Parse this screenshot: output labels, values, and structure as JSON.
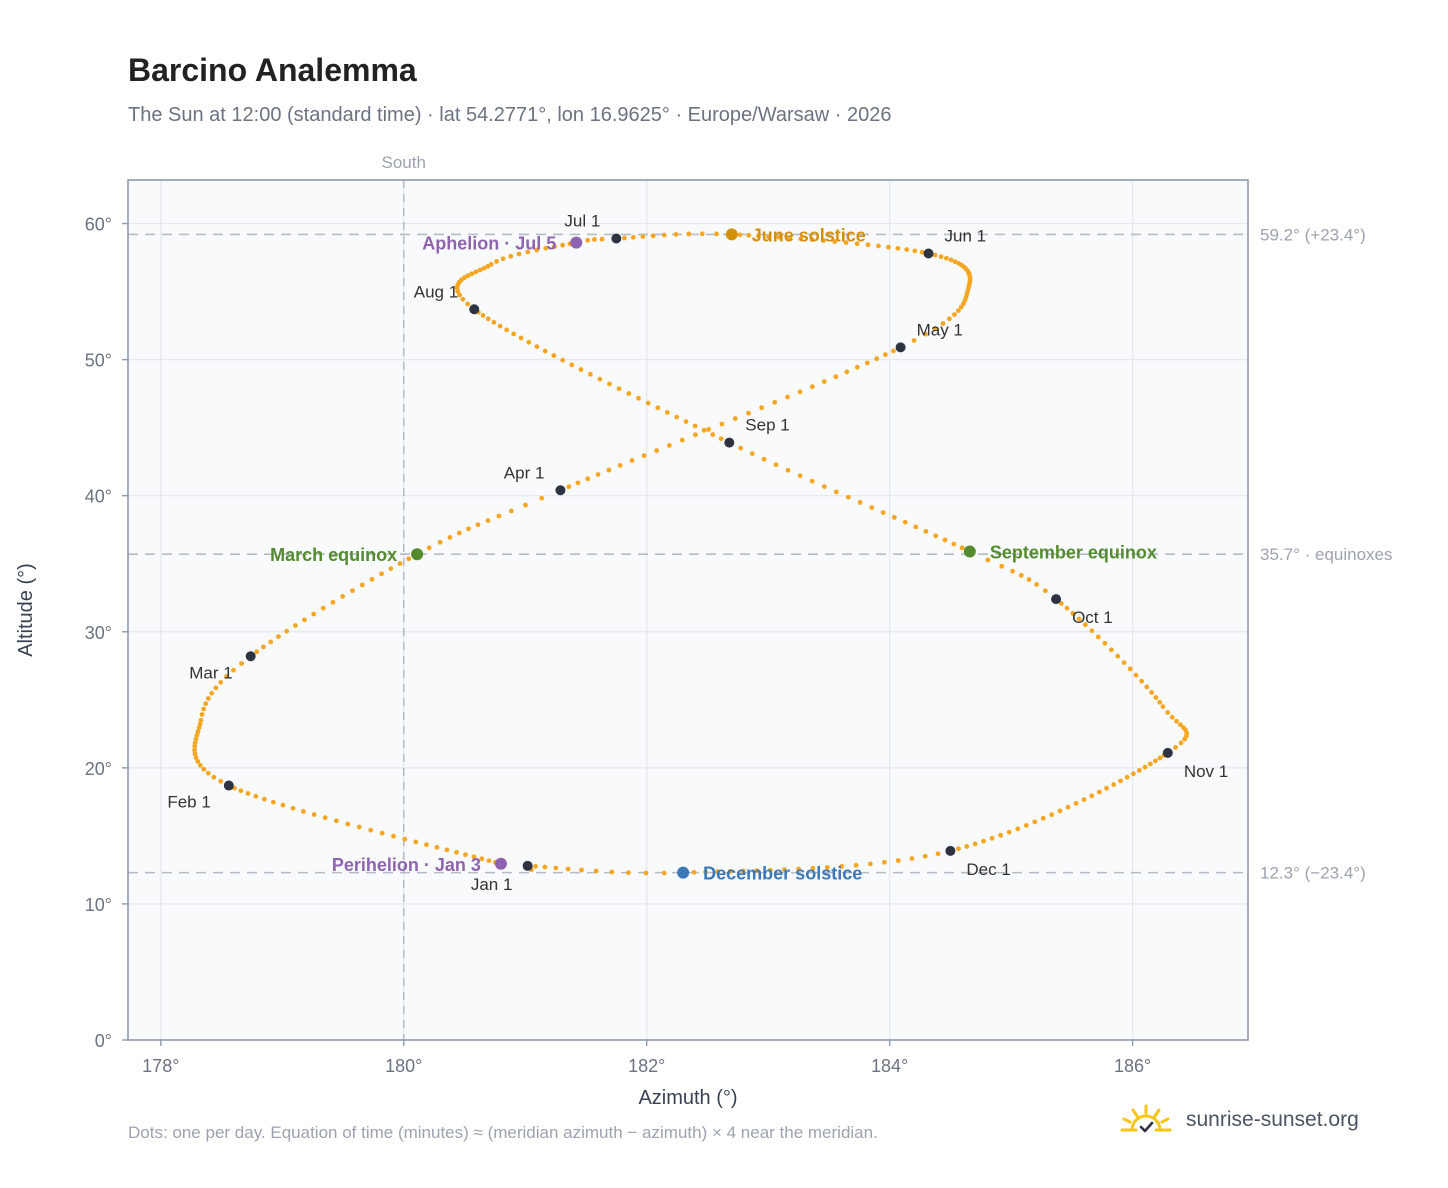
{
  "header": {
    "title": "Barcino Analemma",
    "subtitle": "The Sun at 12:00 (standard time) · lat 54.2771°, lon 16.9625° · Europe/Warsaw · 2026"
  },
  "footer": {
    "note": "Dots: one per day. Equation of time (minutes) ≈ (meridian azimuth − azimuth) × 4 near the meridian.",
    "brand": "sunrise-sunset.org",
    "brand_icon": "sun-logo-icon"
  },
  "colors": {
    "curve": "#f5a623",
    "month_marker": "#2d3340",
    "equinox": "#558b2f",
    "june_solstice": "#d4900a",
    "december_solstice": "#3a78b8",
    "apsis": "#8e63b0",
    "plot_bg": "#f8fafc",
    "grid": "#e3e8ee",
    "frame": "#8f9aab",
    "ref_line": "#b4bcc6"
  },
  "chart_data": {
    "type": "scatter",
    "title": "Barcino Analemma",
    "xlabel": "Azimuth (°)",
    "ylabel": "Altitude (°)",
    "xlim": [
      177.73,
      186.95
    ],
    "ylim": [
      0,
      63.2
    ],
    "x_ticks": [
      178,
      180,
      182,
      184,
      186
    ],
    "x_tick_labels": [
      "178°",
      "180°",
      "182°",
      "184°",
      "186°"
    ],
    "y_ticks": [
      0,
      10,
      20,
      30,
      40,
      50,
      60
    ],
    "y_tick_labels": [
      "0°",
      "10°",
      "20°",
      "30°",
      "40°",
      "50°",
      "60°"
    ],
    "grid": true,
    "meridian": {
      "azimuth": 180,
      "label": "South"
    },
    "reference_lines": [
      {
        "altitude": 59.2,
        "label": "59.2° (+23.4°)"
      },
      {
        "altitude": 35.7,
        "label": "35.7° · equinoxes"
      },
      {
        "altitude": 12.3,
        "label": "12.3° (−23.4°)"
      }
    ],
    "curve_anchors": [
      {
        "day": 1,
        "az": 181.02,
        "alt": 12.8
      },
      {
        "day": 3,
        "az": 180.8,
        "alt": 12.95
      },
      {
        "day": 32,
        "az": 178.56,
        "alt": 18.7
      },
      {
        "day": 49,
        "az": 178.33,
        "alt": 23.5
      },
      {
        "day": 60,
        "az": 178.74,
        "alt": 28.2
      },
      {
        "day": 79,
        "az": 180.11,
        "alt": 35.7
      },
      {
        "day": 91,
        "az": 181.29,
        "alt": 40.4
      },
      {
        "day": 121,
        "az": 184.09,
        "alt": 50.9
      },
      {
        "day": 135,
        "az": 184.65,
        "alt": 55.3
      },
      {
        "day": 152,
        "az": 184.32,
        "alt": 57.8
      },
      {
        "day": 172,
        "az": 182.7,
        "alt": 59.2
      },
      {
        "day": 182,
        "az": 181.75,
        "alt": 58.9
      },
      {
        "day": 186,
        "az": 181.42,
        "alt": 58.6
      },
      {
        "day": 197,
        "az": 180.72,
        "alt": 57.0
      },
      {
        "day": 213,
        "az": 180.58,
        "alt": 53.7
      },
      {
        "day": 244,
        "az": 182.68,
        "alt": 43.9
      },
      {
        "day": 266,
        "az": 184.66,
        "alt": 35.9
      },
      {
        "day": 274,
        "az": 185.37,
        "alt": 32.4
      },
      {
        "day": 293,
        "az": 186.25,
        "alt": 24.5
      },
      {
        "day": 305,
        "az": 186.29,
        "alt": 21.1
      },
      {
        "day": 335,
        "az": 184.5,
        "alt": 13.9
      },
      {
        "day": 355,
        "az": 182.3,
        "alt": 12.3
      },
      {
        "day": 366,
        "az": 181.02,
        "alt": 12.8
      }
    ],
    "month_markers": [
      {
        "label": "Jan 1",
        "az": 181.02,
        "alt": 12.8,
        "pos": "below"
      },
      {
        "label": "Feb 1",
        "az": 178.56,
        "alt": 18.7,
        "pos": "below-left"
      },
      {
        "label": "Mar 1",
        "az": 178.74,
        "alt": 28.2,
        "pos": "below-left"
      },
      {
        "label": "Apr 1",
        "az": 181.29,
        "alt": 40.4,
        "pos": "above-left"
      },
      {
        "label": "May 1",
        "az": 184.09,
        "alt": 50.9,
        "pos": "above-right"
      },
      {
        "label": "Jun 1",
        "az": 184.32,
        "alt": 57.8,
        "pos": "above-right"
      },
      {
        "label": "Jul 1",
        "az": 181.75,
        "alt": 58.9,
        "pos": "above-left"
      },
      {
        "label": "Aug 1",
        "az": 180.58,
        "alt": 53.7,
        "pos": "above-left"
      },
      {
        "label": "Sep 1",
        "az": 182.68,
        "alt": 43.9,
        "pos": "above-right"
      },
      {
        "label": "Oct 1",
        "az": 185.37,
        "alt": 32.4,
        "pos": "below-right"
      },
      {
        "label": "Nov 1",
        "az": 186.29,
        "alt": 21.1,
        "pos": "below-right"
      },
      {
        "label": "Dec 1",
        "az": 184.5,
        "alt": 13.9,
        "pos": "below-right"
      }
    ],
    "events": [
      {
        "label": "March equinox",
        "az": 180.11,
        "alt": 35.7,
        "color": "#558b2f",
        "pos": "left"
      },
      {
        "label": "September equinox",
        "az": 184.66,
        "alt": 35.9,
        "color": "#558b2f",
        "pos": "right"
      },
      {
        "label": "June solstice",
        "az": 182.7,
        "alt": 59.2,
        "color": "#d4900a",
        "pos": "right"
      },
      {
        "label": "December solstice",
        "az": 182.3,
        "alt": 12.3,
        "color": "#3a78b8",
        "pos": "right"
      },
      {
        "label": "Aphelion · Jul 5",
        "az": 181.42,
        "alt": 58.6,
        "color": "#8e63b0",
        "pos": "left"
      },
      {
        "label": "Perihelion · Jan 3",
        "az": 180.8,
        "alt": 12.95,
        "color": "#8e63b0",
        "pos": "left"
      }
    ]
  }
}
